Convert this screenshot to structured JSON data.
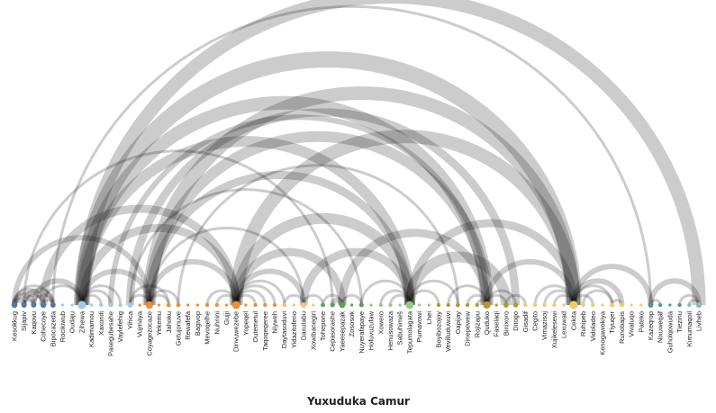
{
  "chart_data": {
    "type": "arc-diagram",
    "title": "Yuxuduka Camur",
    "nodes": [
      {
        "name": "Kesokkug",
        "group": 0
      },
      {
        "name": "Sijapiv",
        "group": 0
      },
      {
        "name": "Kaqovu",
        "group": 0
      },
      {
        "name": "Cohecoye",
        "group": 0
      },
      {
        "name": "Bipocazeda",
        "group": 0
      },
      {
        "name": "Rocikiwub",
        "group": 1
      },
      {
        "name": "Oudaju",
        "group": 1
      },
      {
        "name": "Zihewa",
        "group": 1
      },
      {
        "name": "Kadimamou",
        "group": 1
      },
      {
        "name": "Xaxonifi",
        "group": 1
      },
      {
        "name": "Pasegubesahe",
        "group": 1
      },
      {
        "name": "Vaylefehig",
        "group": 1
      },
      {
        "name": "Yihica",
        "group": 1
      },
      {
        "name": "Vujmaya",
        "group": 2
      },
      {
        "name": "Coyagezocaze",
        "group": 2
      },
      {
        "name": "Yekemu",
        "group": 2
      },
      {
        "name": "Jahoku",
        "group": 2
      },
      {
        "name": "Getujonuve",
        "group": 2
      },
      {
        "name": "Rewafefa",
        "group": 2
      },
      {
        "name": "Bagivop",
        "group": 2
      },
      {
        "name": "Mevoqelhe",
        "group": 2
      },
      {
        "name": "Nuhnini",
        "group": 2
      },
      {
        "name": "Gujji",
        "group": 2
      },
      {
        "name": "Dinvuwezebe",
        "group": 2
      },
      {
        "name": "Yopeqel",
        "group": 2
      },
      {
        "name": "Outemetul",
        "group": 2
      },
      {
        "name": "Taqoqeqeree",
        "group": 2
      },
      {
        "name": "Niyweh",
        "group": 2
      },
      {
        "name": "Daytasoduvi",
        "group": 3
      },
      {
        "name": "Yidazitofeno",
        "group": 3
      },
      {
        "name": "Daxutabu",
        "group": 3
      },
      {
        "name": "Xowibanegiri",
        "group": 3
      },
      {
        "name": "Tohepone",
        "group": 4
      },
      {
        "name": "Cepasorashe",
        "group": 4
      },
      {
        "name": "Yaeesepazak",
        "group": 4
      },
      {
        "name": "Zososok",
        "group": 4
      },
      {
        "name": "Nuyerafapaye",
        "group": 4
      },
      {
        "name": "Hofuvuzufaw",
        "group": 5
      },
      {
        "name": "Xowero",
        "group": 5
      },
      {
        "name": "Henusowaza",
        "group": 5
      },
      {
        "name": "Sabuhimeš",
        "group": 5
      },
      {
        "name": "Tepumolagata",
        "group": 5
      },
      {
        "name": "Pumavowi",
        "group": 5
      },
      {
        "name": "Lhei",
        "group": 5
      },
      {
        "name": "Boyibozojoy",
        "group": 6
      },
      {
        "name": "Vevilluduwuvi",
        "group": 6
      },
      {
        "name": "Oapijay",
        "group": 6
      },
      {
        "name": "Dinepewew",
        "group": 6
      },
      {
        "name": "Rojizapu",
        "group": 6
      },
      {
        "name": "Quduko",
        "group": 6
      },
      {
        "name": "Faselaqi",
        "group": 6
      },
      {
        "name": "Binixoro",
        "group": 6
      },
      {
        "name": "Ditogo",
        "group": 6
      },
      {
        "name": "Gisadif",
        "group": 7
      },
      {
        "name": "Cegito",
        "group": 7
      },
      {
        "name": "Vimazisoj",
        "group": 7
      },
      {
        "name": "Xujikelesewi",
        "group": 7
      },
      {
        "name": "Lexuwad",
        "group": 7
      },
      {
        "name": "Cekita",
        "group": 7
      },
      {
        "name": "Ruhipeb",
        "group": 7
      },
      {
        "name": "Vidoladeo",
        "group": 7
      },
      {
        "name": "Kenogawokiya",
        "group": 7
      },
      {
        "name": "Tiyuqer",
        "group": 7
      },
      {
        "name": "Runobapis",
        "group": 7
      },
      {
        "name": "Vivaluqo",
        "group": 7
      },
      {
        "name": "Pateko",
        "group": 7
      },
      {
        "name": "Kazeqrop",
        "group": 8
      },
      {
        "name": "Nixuweqaf",
        "group": 8
      },
      {
        "name": "Guholqowuda",
        "group": 8
      },
      {
        "name": "Tiezinu",
        "group": 8
      },
      {
        "name": "Kimumaqoil",
        "group": 9
      },
      {
        "name": "Livheb",
        "group": 9
      }
    ],
    "links": [
      [
        7,
        71,
        5
      ],
      [
        7,
        58,
        6
      ],
      [
        7,
        49,
        5
      ],
      [
        14,
        58,
        5
      ],
      [
        14,
        49,
        4
      ],
      [
        23,
        58,
        5
      ],
      [
        23,
        41,
        4
      ],
      [
        7,
        41,
        4
      ],
      [
        12,
        52,
        3
      ],
      [
        10,
        49,
        2
      ],
      [
        14,
        41,
        3
      ],
      [
        3,
        23,
        3
      ],
      [
        7,
        23,
        3
      ],
      [
        1,
        33,
        1
      ],
      [
        4,
        66,
        1
      ],
      [
        12,
        36,
        1
      ],
      [
        17,
        46,
        1
      ],
      [
        7,
        14,
        2
      ],
      [
        0,
        14,
        2
      ],
      [
        2,
        7,
        2
      ],
      [
        23,
        34,
        3
      ],
      [
        23,
        30,
        2
      ],
      [
        30,
        41,
        3
      ],
      [
        34,
        49,
        3
      ],
      [
        41,
        58,
        3
      ],
      [
        41,
        51,
        4
      ],
      [
        49,
        58,
        2
      ],
      [
        58,
        66,
        2
      ],
      [
        58,
        63,
        2
      ],
      [
        58,
        62,
        1
      ],
      [
        66,
        71,
        2
      ],
      [
        14,
        23,
        2
      ],
      [
        49,
        51,
        1
      ],
      [
        49,
        52,
        1
      ],
      [
        41,
        46,
        1
      ],
      [
        41,
        44,
        1
      ],
      [
        41,
        38,
        1
      ],
      [
        41,
        39,
        1
      ],
      [
        34,
        36,
        1
      ],
      [
        34,
        33,
        2
      ],
      [
        34,
        32,
        1
      ],
      [
        30,
        32,
        1
      ],
      [
        30,
        28,
        1
      ],
      [
        23,
        27,
        1
      ],
      [
        23,
        26,
        1
      ],
      [
        23,
        25,
        1
      ],
      [
        23,
        20,
        1
      ],
      [
        23,
        21,
        1
      ],
      [
        14,
        12,
        1
      ],
      [
        14,
        16,
        1
      ],
      [
        14,
        17,
        1
      ],
      [
        7,
        10,
        1
      ],
      [
        7,
        11,
        1
      ],
      [
        7,
        9,
        1
      ],
      [
        7,
        3,
        1
      ],
      [
        0,
        1,
        2
      ],
      [
        0,
        2,
        2
      ],
      [
        0,
        3,
        2
      ],
      [
        0,
        4,
        1
      ],
      [
        1,
        2,
        1
      ],
      [
        1,
        3,
        1
      ],
      [
        1,
        4,
        2
      ],
      [
        2,
        4,
        1
      ],
      [
        3,
        4,
        1
      ],
      [
        49,
        45,
        1
      ],
      [
        49,
        47,
        1
      ],
      [
        49,
        48,
        1
      ],
      [
        58,
        54,
        1
      ],
      [
        58,
        55,
        1
      ],
      [
        58,
        56,
        1
      ],
      [
        58,
        60,
        1
      ],
      [
        66,
        67,
        1
      ],
      [
        70,
        71,
        1
      ],
      [
        69,
        71,
        1
      ],
      [
        62,
        63,
        1
      ],
      [
        36,
        41,
        1
      ],
      [
        14,
        30,
        1
      ],
      [
        62,
        59,
        1
      ],
      [
        51,
        53,
        1
      ],
      [
        23,
        28,
        1
      ],
      [
        12,
        16,
        1
      ]
    ],
    "group_colors": [
      "#4e79a7",
      "#a0cbe8",
      "#f28e2b",
      "#ffbe7d",
      "#59a14f",
      "#8cd17d",
      "#b6992d",
      "#f1ce63",
      "#499894",
      "#86bcb6",
      "#e15759",
      "#ff9d9a",
      "#79706e"
    ],
    "link_color": "#bbbbbb"
  }
}
